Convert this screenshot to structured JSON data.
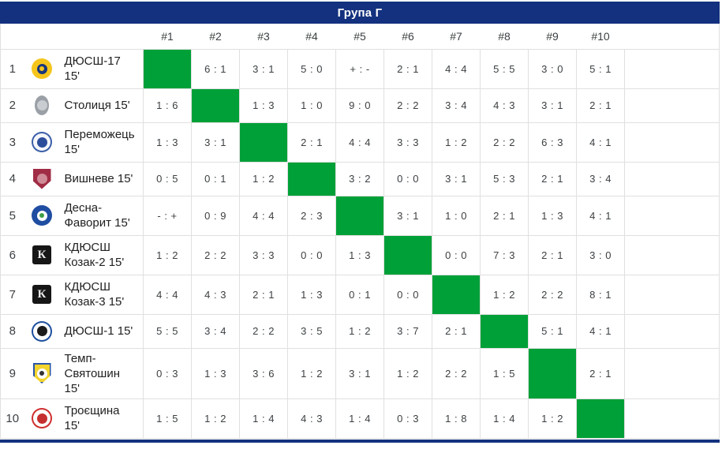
{
  "title": "Група Г",
  "columns": [
    "#1",
    "#2",
    "#3",
    "#4",
    "#5",
    "#6",
    "#7",
    "#8",
    "#9",
    "#10"
  ],
  "colors": {
    "header_bg": "#13317e",
    "self_cell_green": "#00a038",
    "grid_border": "#e0e0e0",
    "score_text": "#3c4043"
  },
  "teams": [
    {
      "number": "1",
      "name": "ДЮСШ-17 15'",
      "logo": {
        "name": "dyussh-17-crest",
        "shape": "circle",
        "bg": "#f6c51c",
        "inner": "#16357d",
        "core": "#f6c51c"
      },
      "results": [
        null,
        "6 : 1",
        "3 : 1",
        "5 : 0",
        "+ : -",
        "2 : 1",
        "4 : 4",
        "5 : 5",
        "3 : 0",
        "5 : 1"
      ]
    },
    {
      "number": "2",
      "name": "Столиця 15'",
      "logo": {
        "name": "stolytsia-crest",
        "shape": "oval",
        "bg": "#9aa0a6",
        "inner": "#c9cdd2"
      },
      "results": [
        "1 : 6",
        null,
        "1 : 3",
        "1 : 0",
        "9 : 0",
        "2 : 2",
        "3 : 4",
        "4 : 3",
        "3 : 1",
        "2 : 1"
      ]
    },
    {
      "number": "3",
      "name": "Переможець 15'",
      "logo": {
        "name": "peremozhets-crest",
        "shape": "circle",
        "bg": "#f4f6fb",
        "border": "#3b5ea8",
        "inner": "#2b4d9b"
      },
      "results": [
        "1 : 3",
        "3 : 1",
        null,
        "2 : 1",
        "4 : 4",
        "3 : 3",
        "1 : 2",
        "2 : 2",
        "6 : 3",
        "4 : 1"
      ]
    },
    {
      "number": "4",
      "name": "Вишневе 15'",
      "logo": {
        "name": "vyshneve-crest",
        "shape": "shield",
        "bg": "#a12c45",
        "inner": "#cf8b97"
      },
      "results": [
        "0 : 5",
        "0 : 1",
        "1 : 2",
        null,
        "3 : 2",
        "0 : 0",
        "3 : 1",
        "5 : 3",
        "2 : 1",
        "3 : 4"
      ]
    },
    {
      "number": "5",
      "name": "Десна-Фаворит 15'",
      "logo": {
        "name": "desna-favoryt-crest",
        "shape": "circle",
        "bg": "#1f4da1",
        "inner": "#ffffff",
        "core": "#3f9e46"
      },
      "results": [
        "- : +",
        "0 : 9",
        "4 : 4",
        "2 : 3",
        null,
        "3 : 1",
        "1 : 0",
        "2 : 1",
        "1 : 3",
        "4 : 1"
      ]
    },
    {
      "number": "6",
      "name": "КДЮСШ Козак-2 15'",
      "logo": {
        "name": "kdyussh-kozak-2-crest",
        "shape": "square",
        "bg": "#161616",
        "letter": "К",
        "letter_color": "#e8e8e8"
      },
      "results": [
        "1 : 2",
        "2 : 2",
        "3 : 3",
        "0 : 0",
        "1 : 3",
        null,
        "0 : 0",
        "7 : 3",
        "2 : 1",
        "3 : 0"
      ]
    },
    {
      "number": "7",
      "name": "КДЮСШ Козак-3 15'",
      "logo": {
        "name": "kdyussh-kozak-3-crest",
        "shape": "square",
        "bg": "#161616",
        "letter": "К",
        "letter_color": "#e8e8e8"
      },
      "results": [
        "4 : 4",
        "4 : 3",
        "2 : 1",
        "1 : 3",
        "0 : 1",
        "0 : 0",
        null,
        "1 : 2",
        "2 : 2",
        "8 : 1"
      ]
    },
    {
      "number": "8",
      "name": "ДЮСШ-1 15'",
      "logo": {
        "name": "dyussh-1-crest",
        "shape": "circle",
        "bg": "#ffffff",
        "border": "#1d4f9e",
        "inner": "#1b1b1b"
      },
      "results": [
        "5 : 5",
        "3 : 4",
        "2 : 2",
        "3 : 5",
        "1 : 2",
        "3 : 7",
        "2 : 1",
        null,
        "5 : 1",
        "4 : 1"
      ]
    },
    {
      "number": "9",
      "name": "Темп-Святошин 15'",
      "logo": {
        "name": "temp-sviatoshyn-crest",
        "shape": "shield",
        "bg": "#f3d42d",
        "border": "#2b57a8",
        "inner": "#ffffff",
        "core": "#333333"
      },
      "results": [
        "0 : 3",
        "1 : 3",
        "3 : 6",
        "1 : 2",
        "3 : 1",
        "1 : 2",
        "2 : 2",
        "1 : 5",
        null,
        "2 : 1"
      ]
    },
    {
      "number": "10",
      "name": "Троєщина 15'",
      "logo": {
        "name": "troieshchyna-crest",
        "shape": "circle",
        "bg": "#ffffff",
        "border": "#cf2e2e",
        "inner": "#c52f2f"
      },
      "results": [
        "1 : 5",
        "1 : 2",
        "1 : 4",
        "4 : 3",
        "1 : 4",
        "0 : 3",
        "1 : 8",
        "1 : 4",
        "1 : 2",
        null
      ]
    }
  ]
}
